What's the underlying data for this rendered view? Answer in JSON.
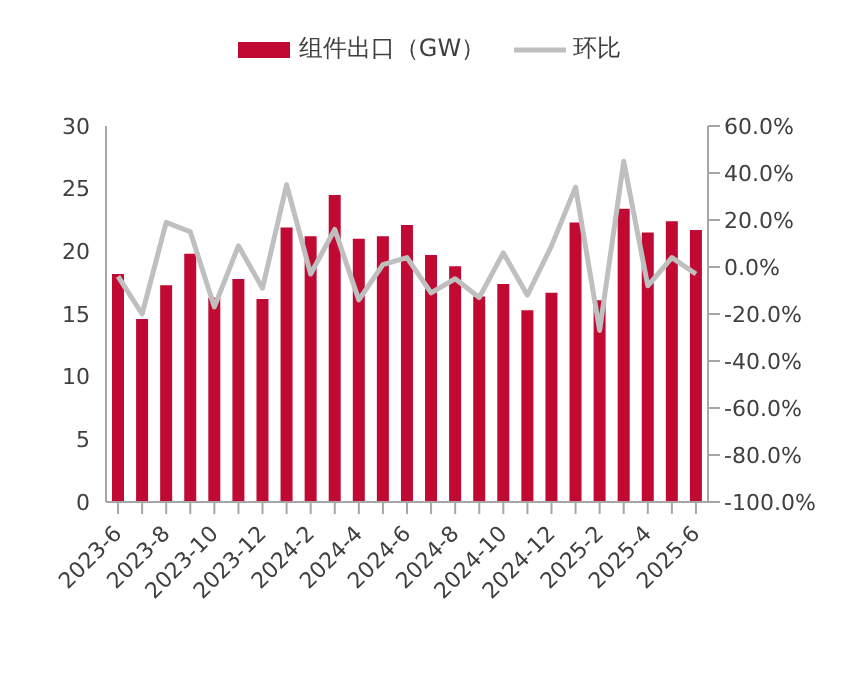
{
  "chart_data": {
    "type": "bar",
    "categories": [
      "2023-6",
      null,
      "2023-8",
      null,
      "2023-10",
      null,
      "2023-12",
      null,
      "2024-2",
      null,
      "2024-4",
      null,
      "2024-6",
      null,
      "2024-8",
      null,
      "2024-10",
      null,
      "2024-12",
      null,
      "2025-2",
      null,
      "2025-4",
      null,
      "2025-6"
    ],
    "series": [
      {
        "name": "组件出口（GW）",
        "color": "#c00a33",
        "values": [
          18.2,
          14.6,
          17.3,
          19.8,
          16.3,
          17.8,
          16.2,
          21.9,
          21.2,
          24.5,
          21.0,
          21.2,
          22.1,
          19.7,
          18.8,
          16.4,
          17.4,
          15.3,
          16.7,
          22.3,
          16.1,
          23.4,
          21.5,
          22.4,
          21.7
        ]
      },
      {
        "name": "环比",
        "type": "line",
        "axis": "y2",
        "color": "#bfbfbf",
        "values": [
          -4,
          -20,
          19,
          15,
          -17,
          9,
          -9,
          35,
          -3,
          16,
          -14,
          1,
          4,
          -11,
          -5,
          -13,
          6,
          -12,
          9,
          34,
          -27,
          45,
          -8,
          4,
          -3
        ]
      }
    ],
    "ylim": [
      0,
      30
    ],
    "yticks": [
      0,
      5,
      10,
      15,
      20,
      25,
      30
    ],
    "y2lim": [
      -100,
      60
    ],
    "y2ticks": [
      {
        "value": 60,
        "label": "60.0%"
      },
      {
        "value": 40,
        "label": "40.0%"
      },
      {
        "value": 20,
        "label": "20.0%"
      },
      {
        "value": 0,
        "label": "0.0%"
      },
      {
        "value": -20,
        "label": "-20.0%"
      },
      {
        "value": -40,
        "label": "-40.0%"
      },
      {
        "value": -60,
        "label": "-60.0%"
      },
      {
        "value": -80,
        "label": "-80.0%"
      },
      {
        "value": -100,
        "label": "-100.0%"
      }
    ],
    "legend": "top",
    "grid": false,
    "marker": "none",
    "line_style": "solid"
  }
}
